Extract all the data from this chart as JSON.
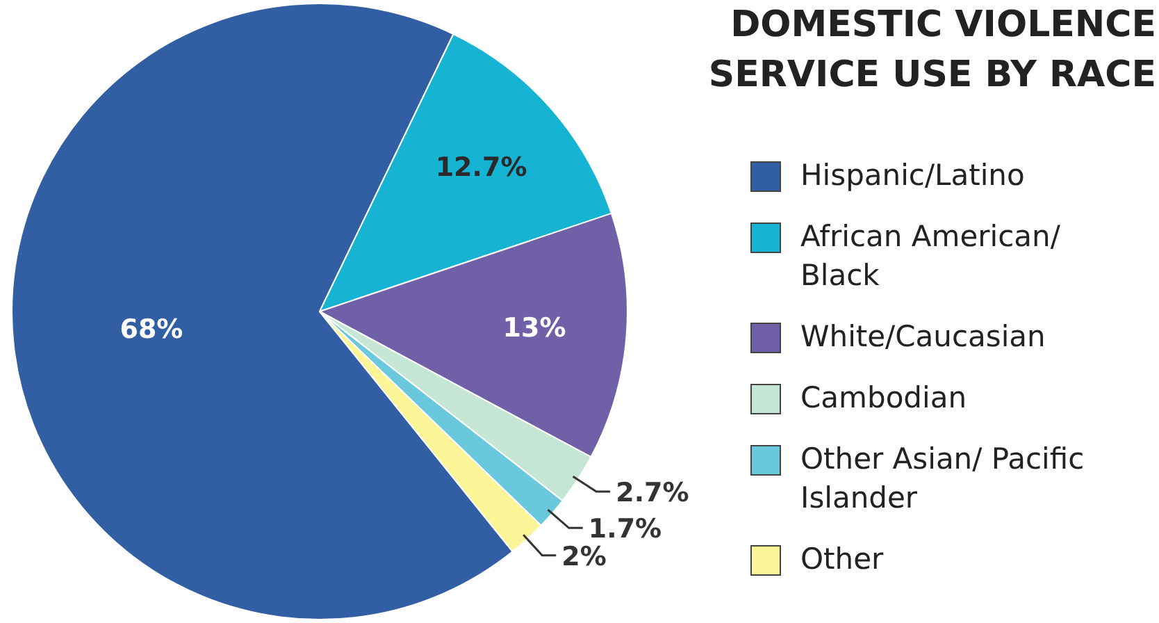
{
  "chart_data": {
    "type": "pie",
    "title": "DOMESTIC VIOLENCE SERVICE USE BY RACE",
    "categories": [
      "Hispanic/Latino",
      "African American/ Black",
      "White/Caucasian",
      "Cambodian",
      "Other Asian/ Pacific Islander",
      "Other"
    ],
    "values": [
      68,
      12.7,
      13,
      2.7,
      1.7,
      2
    ],
    "colors": [
      "#325ea4",
      "#17b3d3",
      "#7060a8",
      "#c5e5d5",
      "#6ac8dc",
      "#fbf597"
    ],
    "value_labels": [
      "68%",
      "12.7%",
      "13%",
      "2.7%",
      "1.7%",
      "2%"
    ],
    "legend": "right"
  }
}
